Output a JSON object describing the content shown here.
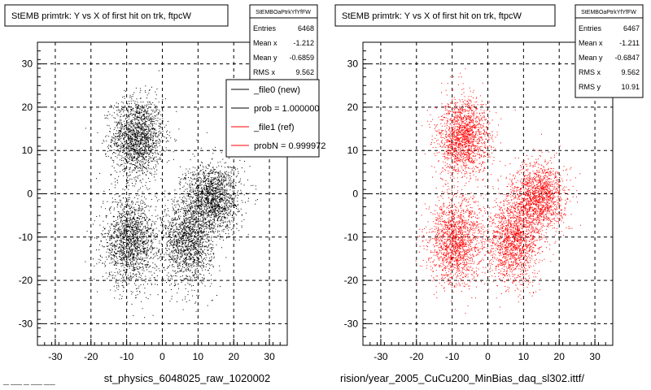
{
  "chart_data": [
    {
      "type": "scatter",
      "title": "StEMB primtrk: Y vs X of first hit on trk, ftpcW",
      "xlim": [
        -35,
        35
      ],
      "ylim": [
        -35,
        35
      ],
      "xticks": [
        "-30",
        "-20",
        "-10",
        "0",
        "10",
        "20",
        "30"
      ],
      "yticks": [
        "-30",
        "-20",
        "-10",
        "0",
        "10",
        "20",
        "30"
      ],
      "grid": true,
      "stats": {
        "header": "StEMBOaPtrkYfYfFW",
        "rows": [
          {
            "label": "Entries",
            "value": "6468"
          },
          {
            "label": "Mean x",
            "value": "-1.212"
          },
          {
            "label": "Mean y",
            "value": "-0.6859"
          },
          {
            "label": "RMS x",
            "value": "9.562"
          }
        ]
      },
      "legend": [
        {
          "label": "_file0 (new)",
          "color": "#000000"
        },
        {
          "label": "prob = 1.000000",
          "color": "#000000"
        },
        {
          "label": "_file1 (ref)",
          "color": "#ff0000"
        },
        {
          "label": "probN = 0.999972",
          "color": "#ff0000"
        }
      ],
      "series": [
        {
          "color": "#000000",
          "clusters": [
            {
              "cx": -7,
              "cy": 13,
              "sx": 3.6,
              "sy": 4.5,
              "n": 1700
            },
            {
              "cx": -9,
              "cy": -11,
              "sx": 3.8,
              "sy": 5,
              "n": 1650
            },
            {
              "cx": 7,
              "cy": -11,
              "sx": 3.5,
              "sy": 5,
              "n": 1500
            },
            {
              "cx": 14,
              "cy": -1,
              "sx": 3.8,
              "sy": 4,
              "n": 1600
            }
          ]
        }
      ],
      "footer": "st_physics_6048025_raw_1020002"
    },
    {
      "type": "scatter",
      "title": "StEMB primtrk: Y vs X of first hit on trk, ftpcW",
      "xlim": [
        -35,
        35
      ],
      "ylim": [
        -35,
        35
      ],
      "xticks": [
        "-30",
        "-20",
        "-10",
        "0",
        "10",
        "20",
        "30"
      ],
      "yticks": [
        "-30",
        "-20",
        "-10",
        "0",
        "10",
        "20",
        "30"
      ],
      "grid": true,
      "stats": {
        "header": "StEMBOaPtrkYfYfFW",
        "rows": [
          {
            "label": "Entries",
            "value": "6467"
          },
          {
            "label": "Mean x",
            "value": "-1.211"
          },
          {
            "label": "Mean y",
            "value": "-0.6847"
          },
          {
            "label": "RMS x",
            "value": "9.562"
          },
          {
            "label": "RMS y",
            "value": "10.91"
          }
        ]
      },
      "series": [
        {
          "color": "#ff0000",
          "clusters": [
            {
              "cx": -7,
              "cy": 13,
              "sx": 3.6,
              "sy": 4.5,
              "n": 1700
            },
            {
              "cx": -9,
              "cy": -11,
              "sx": 3.8,
              "sy": 5,
              "n": 1650
            },
            {
              "cx": 7,
              "cy": -11,
              "sx": 3.5,
              "sy": 5,
              "n": 1500
            },
            {
              "cx": 14,
              "cy": -1,
              "sx": 3.8,
              "sy": 4,
              "n": 1600
            }
          ]
        }
      ],
      "footer": "rision/year_2005_CuCu200_MinBias_daq_sl302.ittf/"
    }
  ],
  "bottom_left_text": "— —— — —— ——"
}
